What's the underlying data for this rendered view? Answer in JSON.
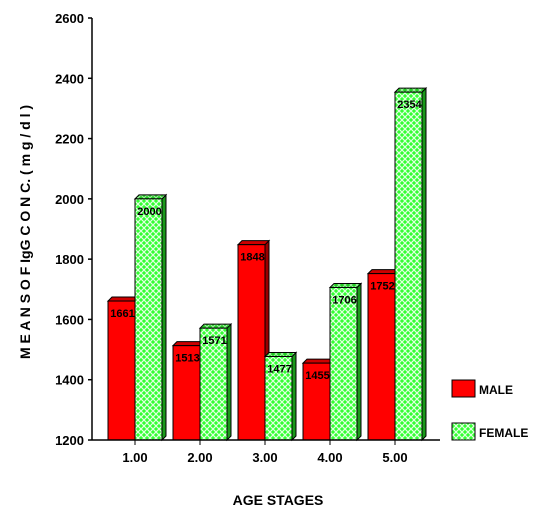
{
  "chart_data": {
    "type": "bar",
    "style": "3d-clustered",
    "xlabel": "AGE STAGES",
    "ylabel": "M E A N S  O F  IgG  C O N C.  (  m g  /  d l )",
    "categories": [
      "1.00",
      "2.00",
      "3.00",
      "4.00",
      "5.00"
    ],
    "ylim": [
      1200,
      2600
    ],
    "yticks": [
      1200,
      1400,
      1600,
      1800,
      2000,
      2200,
      2400,
      2600
    ],
    "grid": false,
    "legend_position": "right",
    "series": [
      {
        "name": "MALE",
        "color": "#ff0000",
        "pattern": "solid",
        "values": [
          1661,
          1513,
          1848,
          1455,
          1752
        ]
      },
      {
        "name": "FEMALE",
        "color": "#33ff33",
        "pattern": "crosshatch",
        "values": [
          2000,
          1571,
          1477,
          1706,
          2354
        ]
      }
    ]
  }
}
